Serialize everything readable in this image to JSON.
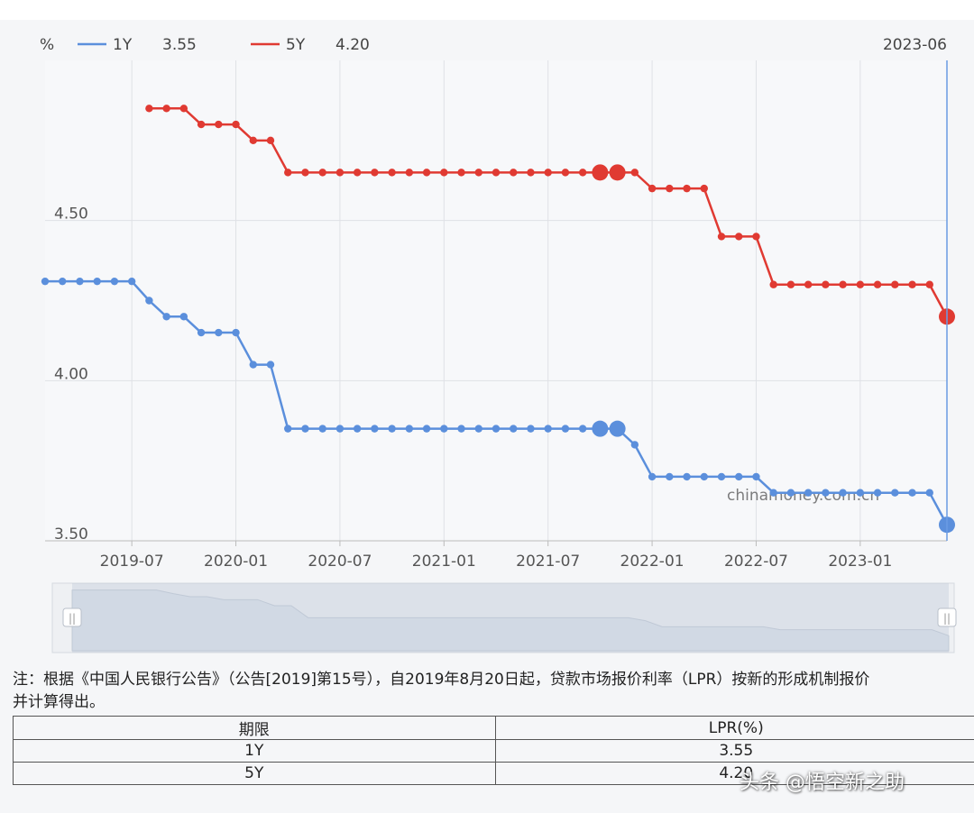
{
  "chart_data": {
    "type": "line",
    "unit_label": "%",
    "current_date": "2023-06",
    "x_ticks": [
      "2019-07",
      "2020-01",
      "2020-07",
      "2021-01",
      "2021-07",
      "2022-01",
      "2022-07",
      "2023-01"
    ],
    "y_ticks": [
      "4.50",
      "4.00",
      "3.50"
    ],
    "ylim": [
      3.5,
      5.0
    ],
    "grid": true,
    "legend_position": "top-left",
    "series": [
      {
        "name": "1Y",
        "current_value": "3.55",
        "color": "#5b8fdc",
        "values": [
          4.31,
          4.31,
          4.31,
          4.31,
          4.31,
          4.31,
          4.25,
          4.2,
          4.2,
          4.15,
          4.15,
          4.15,
          4.05,
          4.05,
          3.85,
          3.85,
          3.85,
          3.85,
          3.85,
          3.85,
          3.85,
          3.85,
          3.85,
          3.85,
          3.85,
          3.85,
          3.85,
          3.85,
          3.85,
          3.85,
          3.85,
          3.85,
          3.85,
          3.85,
          3.8,
          3.7,
          3.7,
          3.7,
          3.7,
          3.7,
          3.7,
          3.7,
          3.65,
          3.65,
          3.65,
          3.65,
          3.65,
          3.65,
          3.65,
          3.65,
          3.65,
          3.65,
          3.55
        ]
      },
      {
        "name": "5Y",
        "current_value": "4.20",
        "color": "#e03a32",
        "values": [
          null,
          null,
          null,
          null,
          null,
          null,
          4.85,
          4.85,
          4.85,
          4.8,
          4.8,
          4.8,
          4.75,
          4.75,
          4.65,
          4.65,
          4.65,
          4.65,
          4.65,
          4.65,
          4.65,
          4.65,
          4.65,
          4.65,
          4.65,
          4.65,
          4.65,
          4.65,
          4.65,
          4.65,
          4.65,
          4.65,
          4.65,
          4.65,
          4.65,
          4.6,
          4.6,
          4.6,
          4.6,
          4.45,
          4.45,
          4.45,
          4.3,
          4.3,
          4.3,
          4.3,
          4.3,
          4.3,
          4.3,
          4.3,
          4.3,
          4.3,
          4.2
        ]
      }
    ],
    "highlight_indices": [
      32,
      33,
      52
    ],
    "source_text": "chinamoney.com.cn"
  },
  "note": {
    "line1": "注：根据《中国人民银行公告》（公告[2019]第15号），自2019年8月20日起，贷款市场报价利率（LPR）按新的形成机制报价",
    "line2": "并计算得出。"
  },
  "table": {
    "headers": [
      "期限",
      "LPR(%)"
    ],
    "rows": [
      {
        "term": "1Y",
        "rate": "3.55"
      },
      {
        "term": "5Y",
        "rate": "4.20"
      }
    ]
  },
  "watermark": "头条 @悟空新之助",
  "colors": {
    "grid": "#dfe1e6",
    "axis_text": "#555555",
    "slider_fill": "#dde3ec",
    "current_line": "#6a9be3"
  }
}
